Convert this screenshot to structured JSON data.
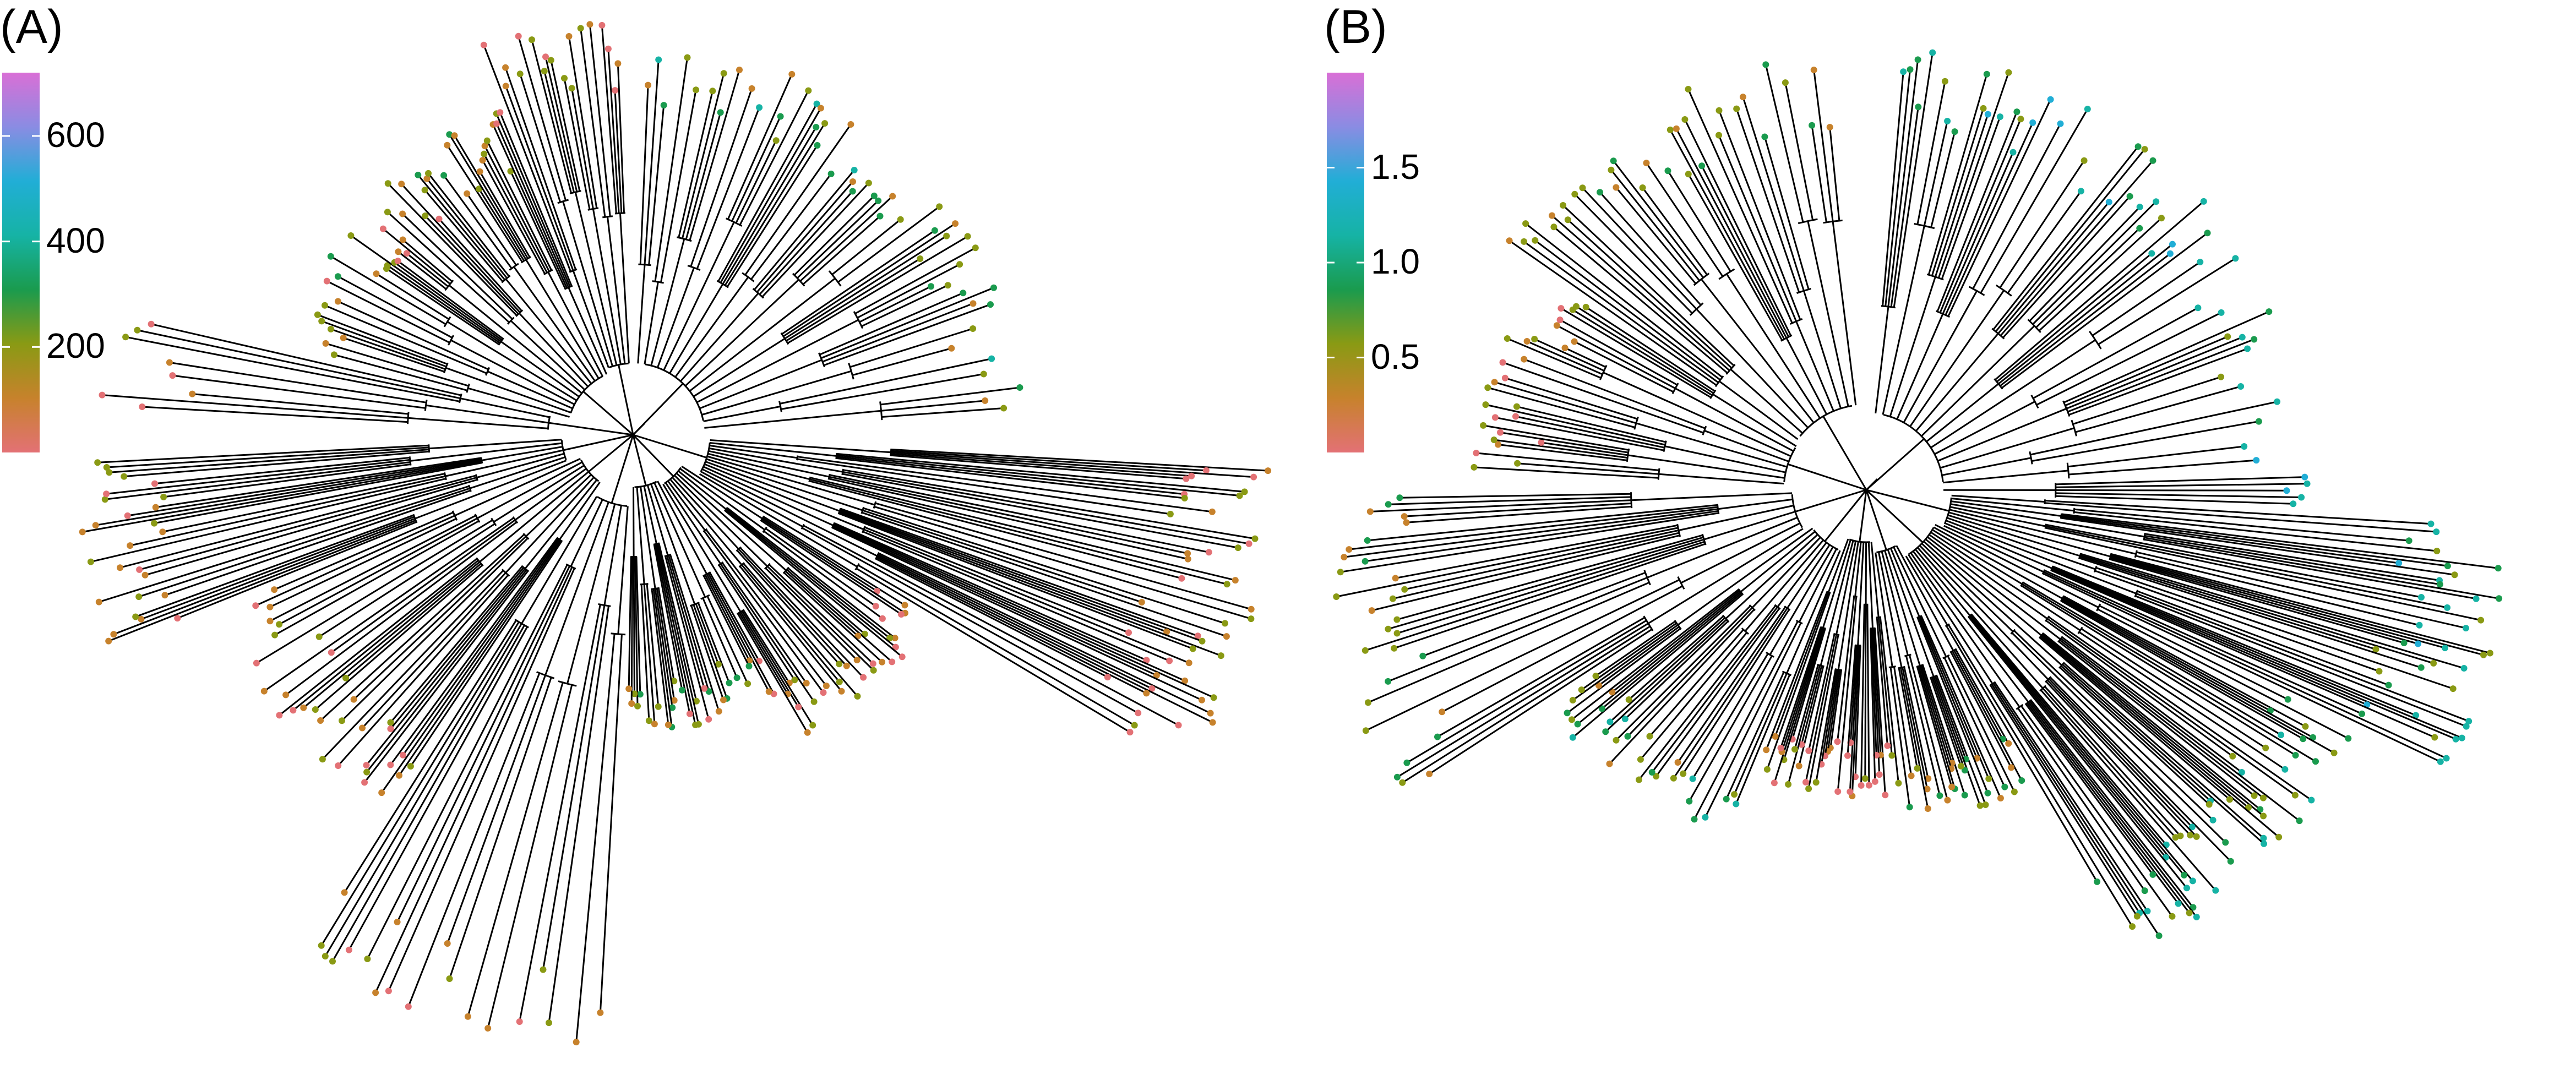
{
  "panels": [
    {
      "id": "A",
      "label": "(A)",
      "colorbar": {
        "min": 0,
        "max": 720,
        "ticks": [
          "200",
          "400",
          "600"
        ],
        "tick_values": [
          200,
          400,
          600
        ]
      },
      "seed": 11
    },
    {
      "id": "B",
      "label": "(B)",
      "colorbar": {
        "min": 0,
        "max": 2.0,
        "ticks": [
          "0.5",
          "1.0",
          "1.5"
        ],
        "tick_values": [
          0.5,
          1.0,
          1.5
        ]
      },
      "seed": 29
    }
  ],
  "palette": [
    "#e37175",
    "#c7822c",
    "#8a9a14",
    "#1a9b4e",
    "#16b3a5",
    "#21aed6",
    "#8a8ce3",
    "#d96fd6"
  ]
}
